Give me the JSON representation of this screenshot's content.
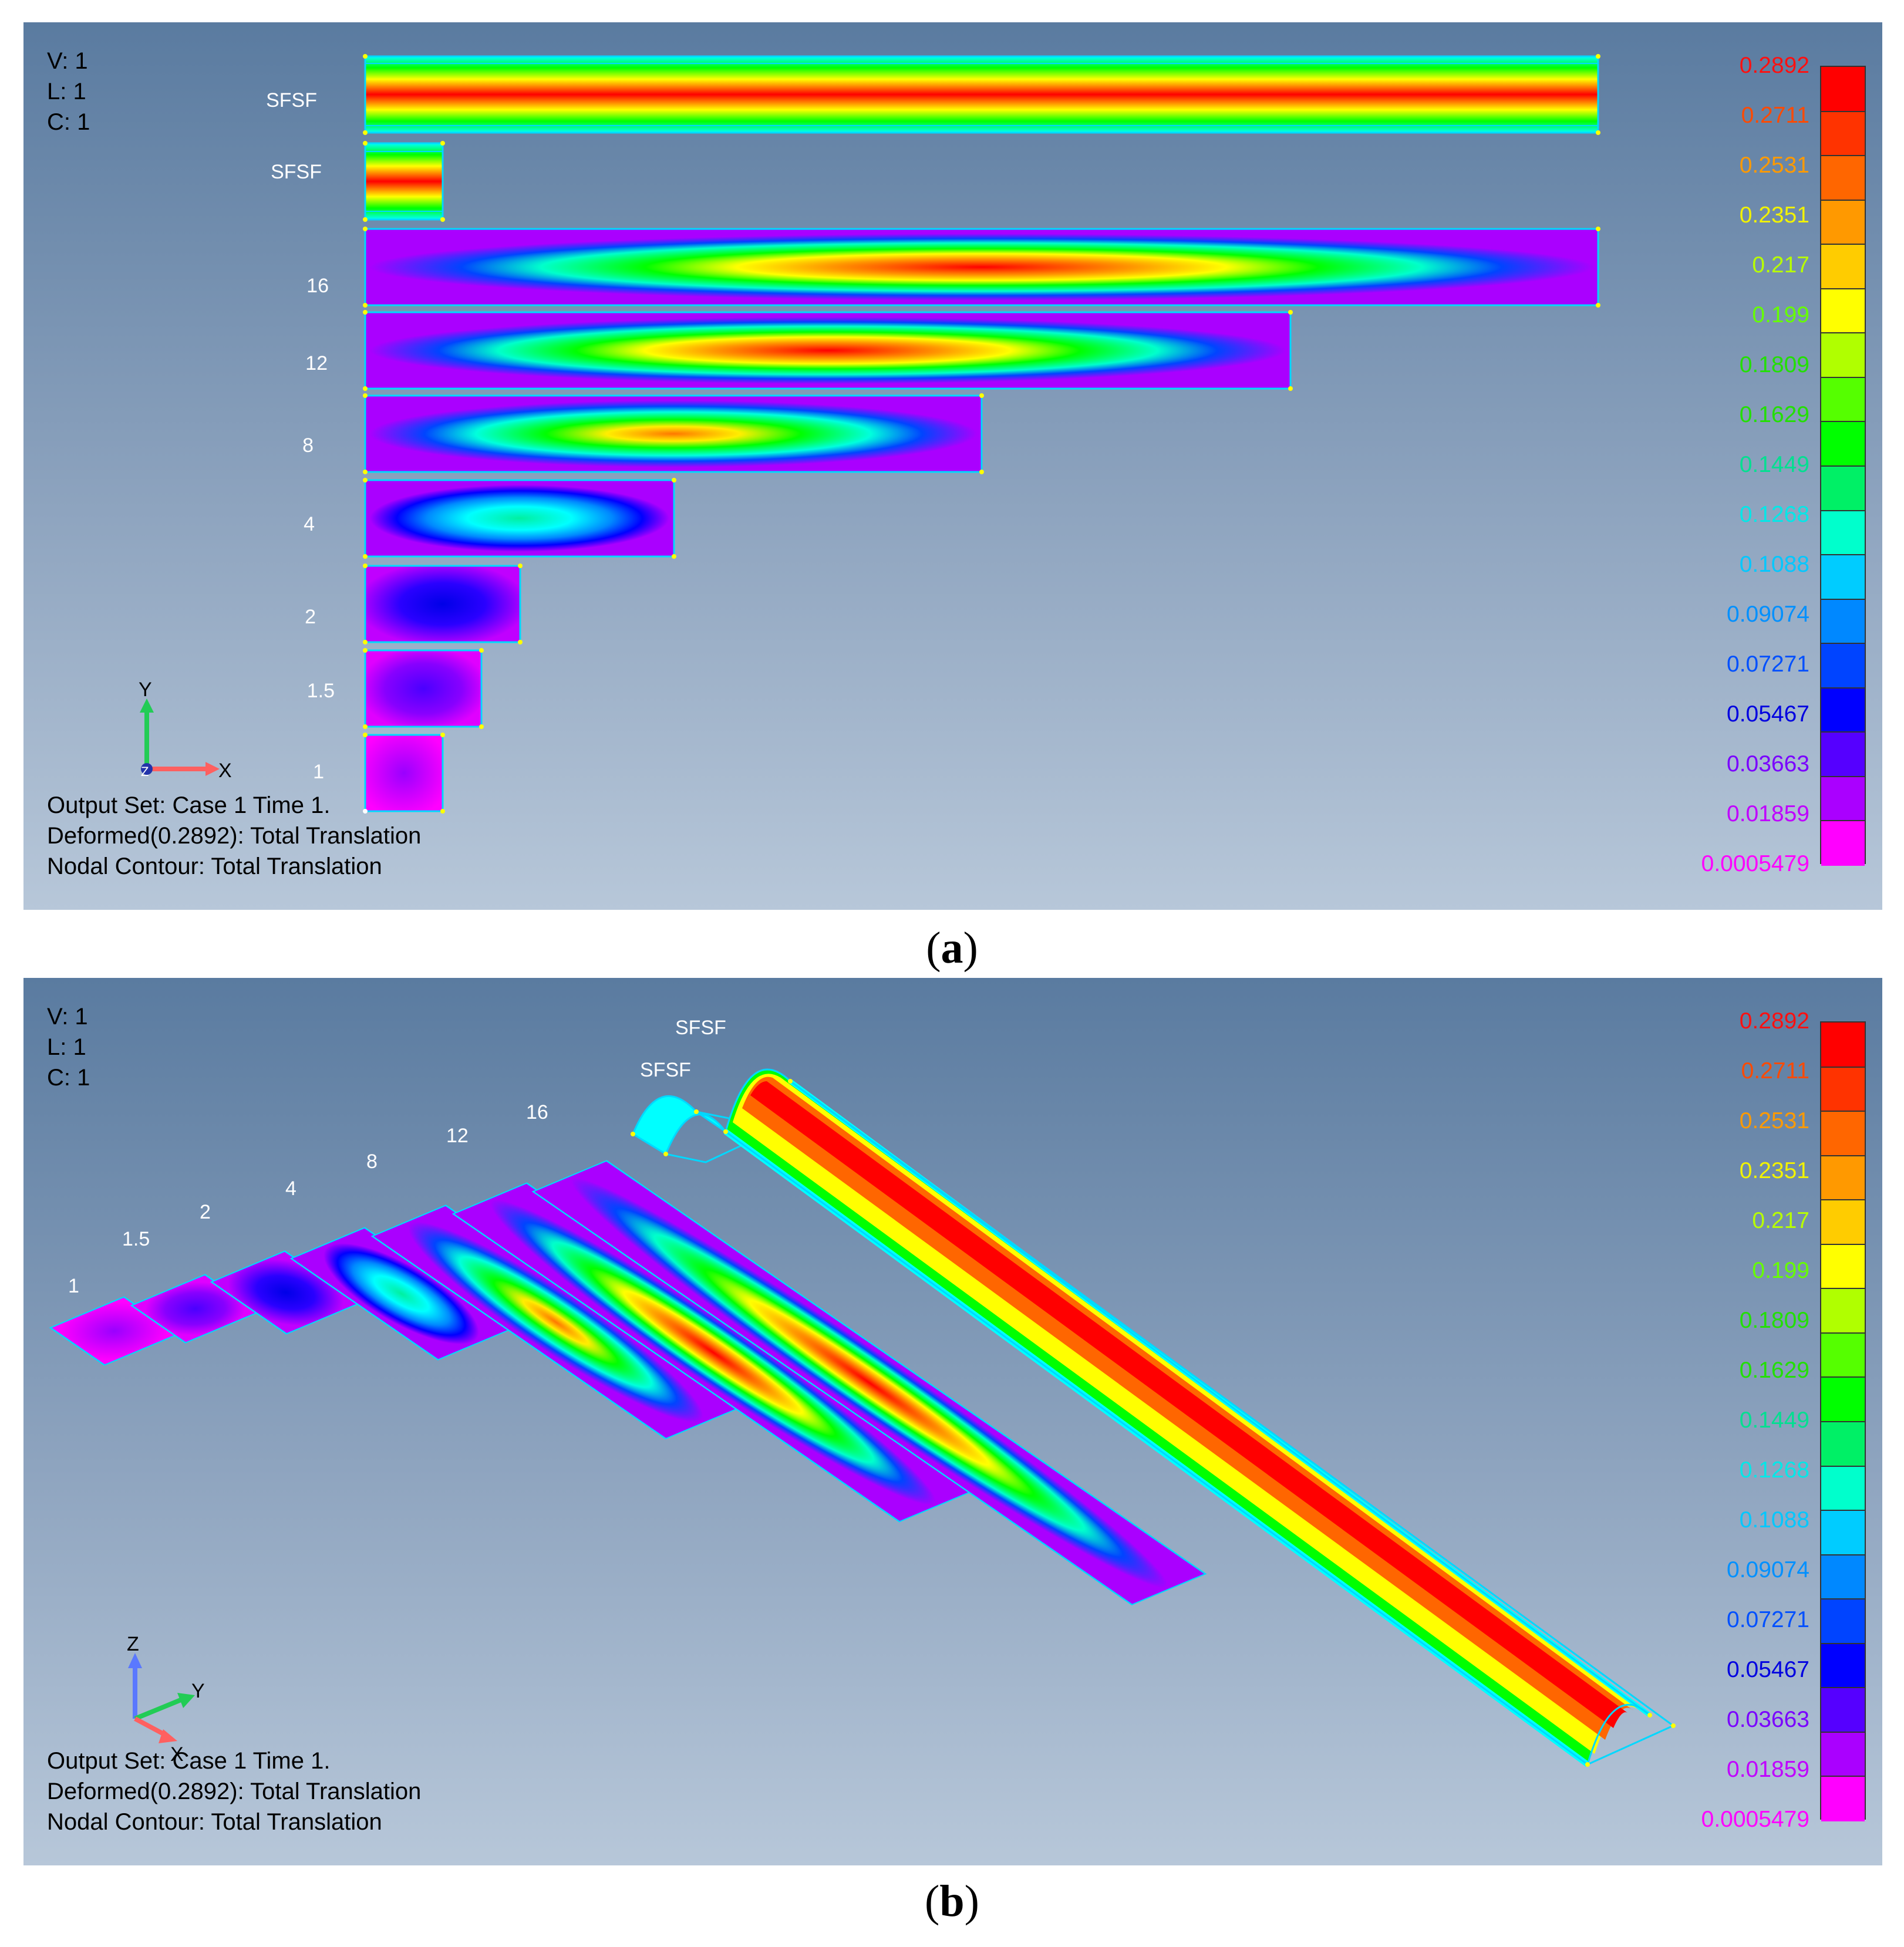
{
  "colors": {
    "magenta": "#ff00ff",
    "violet": "#8a00ff",
    "blue": "#0000ff",
    "cyan": "#00ffff",
    "green": "#00ff00",
    "yellow": "#ffff00",
    "orange": "#ff8c00",
    "red": "#ff0000",
    "mesh_line": "#00d8ff",
    "node_point": "#ffff00"
  },
  "contour_legend": {
    "levels": [
      "0.2892",
      "0.2711",
      "0.2531",
      "0.2351",
      "0.217",
      "0.199",
      "0.1809",
      "0.1629",
      "0.1449",
      "0.1268",
      "0.1088",
      "0.09074",
      "0.07271",
      "0.05467",
      "0.03663",
      "0.01859",
      "0.0005479"
    ],
    "label_colors": [
      "#ff1010",
      "#ff4a00",
      "#ff9a00",
      "#f2f200",
      "#b8ff00",
      "#66ff00",
      "#22e000",
      "#22e000",
      "#00e090",
      "#00e8e8",
      "#00c8ff",
      "#0090ff",
      "#0050ff",
      "#0000e0",
      "#7a00ff",
      "#c000ff",
      "#ff00ff"
    ],
    "band_colors": [
      "#ff0000",
      "#ff3300",
      "#ff6600",
      "#ff9900",
      "#ffcc00",
      "#ffff00",
      "#b0ff00",
      "#55ff00",
      "#00ff00",
      "#00f066",
      "#00ffcc",
      "#00ccff",
      "#0088ff",
      "#0044ff",
      "#0000ff",
      "#5500ff",
      "#aa00ff",
      "#ff00ff"
    ]
  },
  "panels": [
    {
      "caption": {
        "open": "(",
        "letter": "a",
        "close": ")"
      },
      "view_info": [
        "V: 1",
        "L: 1",
        "C: 1"
      ],
      "output_info": [
        "Output Set: Case 1 Time 1.",
        "Deformed(0.2892): Total Translation",
        "Nodal Contour: Total Translation"
      ],
      "axes": {
        "vertical": "Y",
        "horizontal": "X",
        "depth": "Z"
      },
      "models": [
        {
          "label": "SFSF",
          "type": "strip"
        },
        {
          "label": "SFSF",
          "type": "strip"
        },
        {
          "label": "16",
          "type": "plate",
          "peak": 1.0
        },
        {
          "label": "12",
          "type": "plate",
          "peak": 0.98
        },
        {
          "label": "8",
          "type": "plate",
          "peak": 0.86
        },
        {
          "label": "4",
          "type": "plate",
          "peak": 0.45
        },
        {
          "label": "2",
          "type": "plate",
          "peak": 0.24
        },
        {
          "label": "1.5",
          "type": "plate",
          "peak": 0.17
        },
        {
          "label": "1",
          "type": "plate",
          "peak": 0.1
        }
      ]
    },
    {
      "caption": {
        "open": "(",
        "letter": "b",
        "close": ")"
      },
      "view_info": [
        "V: 1",
        "L: 1",
        "C: 1"
      ],
      "output_info": [
        "Output Set: Case 1 Time 1.",
        "Deformed(0.2892): Total Translation",
        "Nodal Contour: Total Translation"
      ],
      "axes": {
        "vertical": "Z",
        "horizontal": "Y",
        "depth": "X"
      },
      "models": [
        {
          "label": "SFSF",
          "type": "strip"
        },
        {
          "label": "SFSF",
          "type": "strip"
        },
        {
          "label": "16",
          "type": "plate",
          "peak": 1.0
        },
        {
          "label": "12",
          "type": "plate",
          "peak": 0.98
        },
        {
          "label": "8",
          "type": "plate",
          "peak": 0.86
        },
        {
          "label": "4",
          "type": "plate",
          "peak": 0.45
        },
        {
          "label": "2",
          "type": "plate",
          "peak": 0.24
        },
        {
          "label": "1.5",
          "type": "plate",
          "peak": 0.17
        },
        {
          "label": "1",
          "type": "plate",
          "peak": 0.1
        }
      ]
    }
  ]
}
